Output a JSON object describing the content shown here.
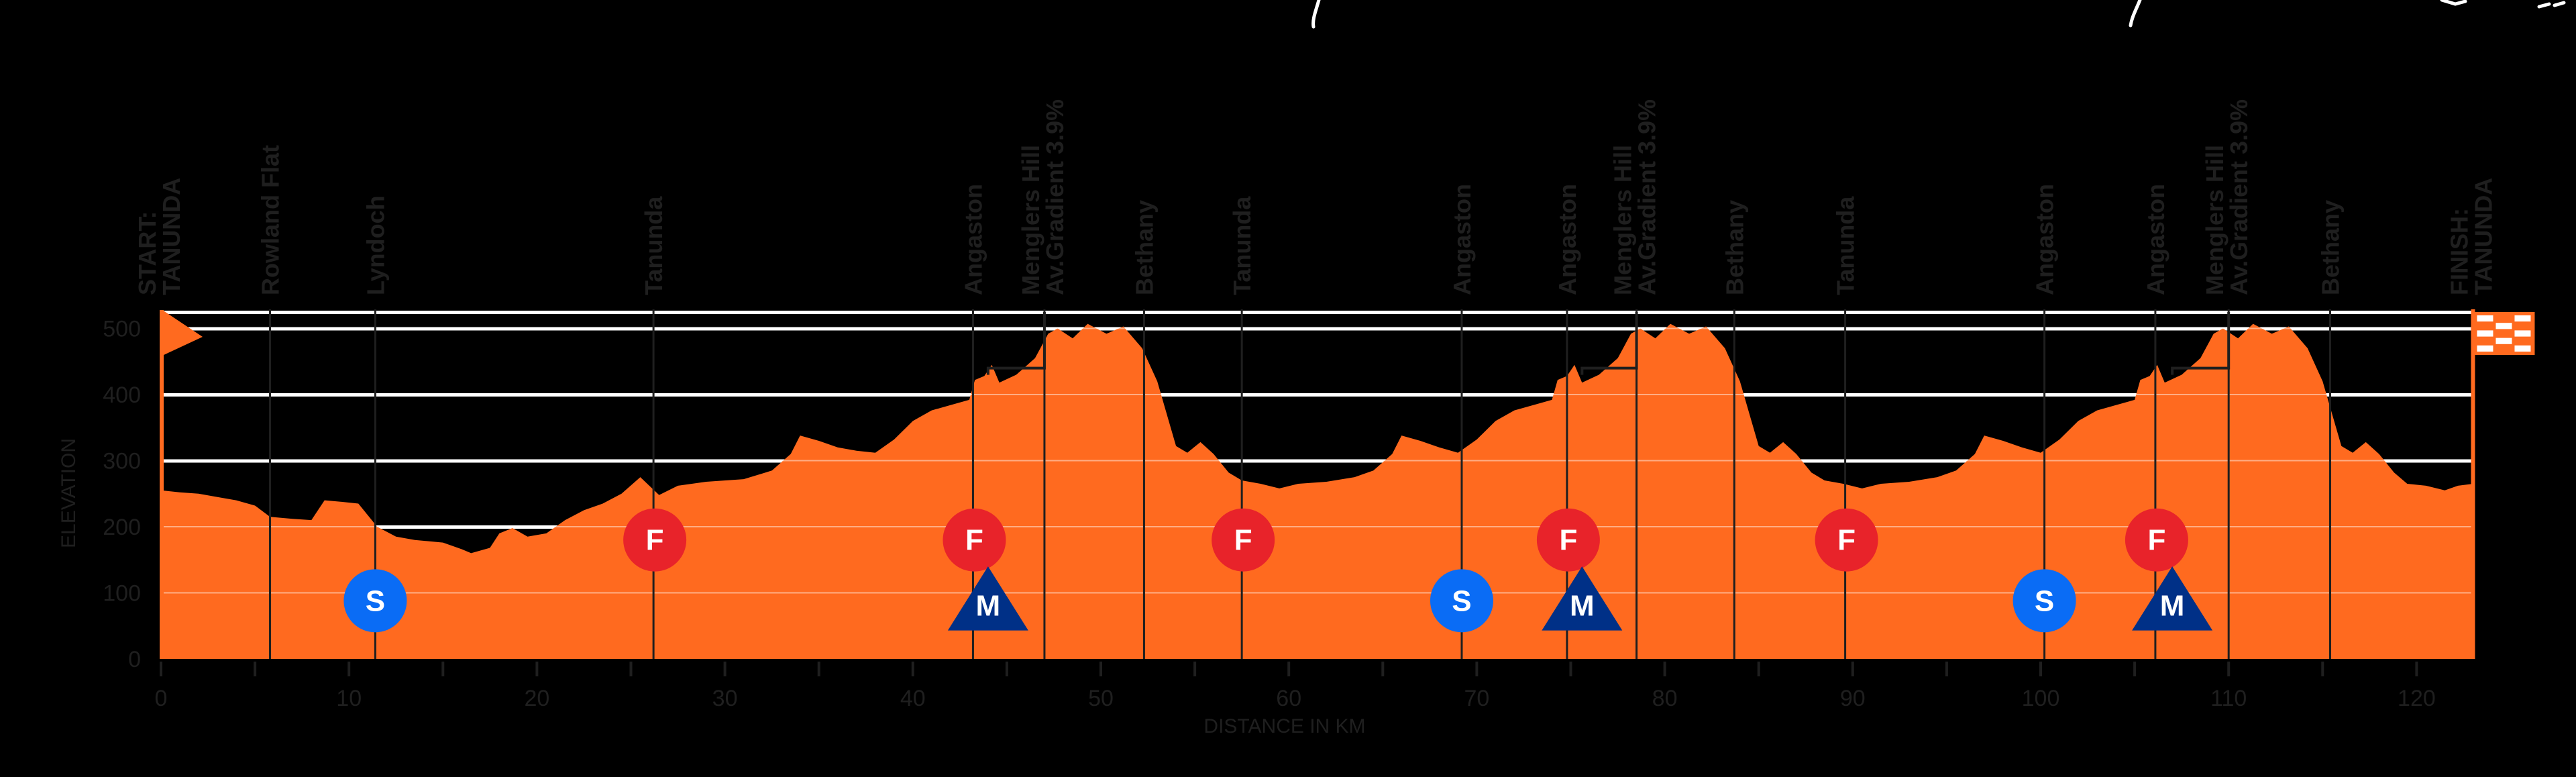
{
  "chart_data": {
    "type": "area",
    "title": "",
    "xlabel": "DISTANCE IN KM",
    "ylabel": "ELEVATION",
    "xlim": [
      0,
      123
    ],
    "ylim": [
      0,
      520
    ],
    "x_ticks": [
      0,
      10,
      20,
      30,
      40,
      50,
      60,
      70,
      80,
      90,
      100,
      110,
      120
    ],
    "y_ticks": [
      0,
      100,
      200,
      300,
      400,
      500
    ],
    "grid": true,
    "colors": {
      "fill": "#FF6A1F",
      "background": "#000000",
      "text": "#1F1F1F",
      "gridline": "#FFFFFF",
      "sprint": "#0A6CF5",
      "feed": "#E8232A",
      "mountain": "#003087"
    },
    "profile": [
      [
        0,
        255
      ],
      [
        1,
        252
      ],
      [
        2,
        250
      ],
      [
        3,
        245
      ],
      [
        4,
        240
      ],
      [
        5,
        232
      ],
      [
        5.8,
        215
      ],
      [
        7,
        212
      ],
      [
        8,
        210
      ],
      [
        8.7,
        240
      ],
      [
        9.5,
        238
      ],
      [
        10.5,
        235
      ],
      [
        11.5,
        200
      ],
      [
        12.5,
        185
      ],
      [
        13.5,
        180
      ],
      [
        15,
        176
      ],
      [
        16,
        166
      ],
      [
        16.5,
        160
      ],
      [
        17.5,
        168
      ],
      [
        18,
        190
      ],
      [
        18.7,
        198
      ],
      [
        19.5,
        185
      ],
      [
        20.5,
        190
      ],
      [
        21.5,
        210
      ],
      [
        22.5,
        225
      ],
      [
        23.5,
        235
      ],
      [
        24.5,
        250
      ],
      [
        25.5,
        275
      ],
      [
        26.5,
        248
      ],
      [
        27.5,
        262
      ],
      [
        29,
        268
      ],
      [
        31,
        272
      ],
      [
        32.5,
        285
      ],
      [
        33.5,
        310
      ],
      [
        34,
        338
      ],
      [
        35,
        330
      ],
      [
        36,
        320
      ],
      [
        37,
        315
      ],
      [
        38,
        312
      ],
      [
        39,
        332
      ],
      [
        40,
        360
      ],
      [
        41,
        376
      ],
      [
        42,
        384
      ],
      [
        43,
        392
      ],
      [
        43.3,
        422
      ],
      [
        43.8,
        428
      ],
      [
        44.2,
        445
      ],
      [
        44.6,
        418
      ],
      [
        45.5,
        430
      ],
      [
        46.5,
        455
      ],
      [
        47.2,
        492
      ],
      [
        47.7,
        500
      ],
      [
        48.5,
        485
      ],
      [
        49.3,
        507
      ],
      [
        50.3,
        492
      ],
      [
        51.2,
        503
      ],
      [
        52.2,
        470
      ],
      [
        53,
        420
      ],
      [
        54,
        322
      ],
      [
        54.6,
        312
      ],
      [
        55.3,
        328
      ],
      [
        56,
        310
      ],
      [
        56.8,
        282
      ],
      [
        57.5,
        270
      ],
      [
        58.5,
        265
      ],
      [
        59.5,
        258
      ],
      [
        60.5,
        265
      ],
      [
        62,
        268
      ],
      [
        63.5,
        275
      ],
      [
        64.5,
        285
      ],
      [
        65.5,
        310
      ],
      [
        66,
        338
      ],
      [
        67,
        330
      ],
      [
        68,
        320
      ],
      [
        69,
        312
      ],
      [
        70,
        332
      ],
      [
        71,
        360
      ],
      [
        72,
        376
      ],
      [
        73,
        384
      ],
      [
        74,
        392
      ],
      [
        74.3,
        422
      ],
      [
        74.8,
        428
      ],
      [
        75.2,
        445
      ],
      [
        75.6,
        418
      ],
      [
        76.5,
        430
      ],
      [
        77.5,
        455
      ],
      [
        78.2,
        492
      ],
      [
        78.7,
        500
      ],
      [
        79.5,
        485
      ],
      [
        80.3,
        507
      ],
      [
        81.3,
        492
      ],
      [
        82.2,
        503
      ],
      [
        83.2,
        470
      ],
      [
        84,
        420
      ],
      [
        85,
        322
      ],
      [
        85.6,
        312
      ],
      [
        86.3,
        328
      ],
      [
        87,
        310
      ],
      [
        87.8,
        282
      ],
      [
        88.5,
        270
      ],
      [
        89.5,
        265
      ],
      [
        90.5,
        258
      ],
      [
        91.5,
        265
      ],
      [
        93,
        268
      ],
      [
        94.5,
        275
      ],
      [
        95.5,
        285
      ],
      [
        96.5,
        310
      ],
      [
        97,
        338
      ],
      [
        98,
        330
      ],
      [
        99,
        320
      ],
      [
        100,
        312
      ],
      [
        101,
        332
      ],
      [
        102,
        360
      ],
      [
        103,
        376
      ],
      [
        104,
        384
      ],
      [
        105,
        392
      ],
      [
        105.3,
        422
      ],
      [
        105.8,
        428
      ],
      [
        106.2,
        445
      ],
      [
        106.6,
        418
      ],
      [
        107.5,
        430
      ],
      [
        108.5,
        455
      ],
      [
        109.2,
        492
      ],
      [
        109.7,
        500
      ],
      [
        110.5,
        485
      ],
      [
        111.3,
        507
      ],
      [
        112.3,
        492
      ],
      [
        113.2,
        503
      ],
      [
        114.2,
        470
      ],
      [
        115,
        420
      ],
      [
        116,
        322
      ],
      [
        116.6,
        312
      ],
      [
        117.3,
        328
      ],
      [
        118,
        310
      ],
      [
        118.8,
        282
      ],
      [
        119.5,
        265
      ],
      [
        120.5,
        262
      ],
      [
        121.5,
        255
      ],
      [
        122.2,
        262
      ],
      [
        123,
        265
      ]
    ],
    "waypoints": [
      {
        "km": 0,
        "name": "START:",
        "name2": "TANUNDA",
        "bold": true
      },
      {
        "km": 5.8,
        "name": "Rowland Flat"
      },
      {
        "km": 11.4,
        "name": "Lyndoch"
      },
      {
        "km": 26.2,
        "name": "Tanunda"
      },
      {
        "km": 43.2,
        "name": "Angaston"
      },
      {
        "km": 47,
        "name": "Menglers Hill",
        "name2": "Av.Gradient 3.9%"
      },
      {
        "km": 52.3,
        "name": "Bethany"
      },
      {
        "km": 57.5,
        "name": "Tanunda"
      },
      {
        "km": 69.2,
        "name": "Angaston"
      },
      {
        "km": 74.8,
        "name": "Angaston"
      },
      {
        "km": 78.5,
        "name": "Menglers Hill",
        "name2": "Av.Gradient 3.9%"
      },
      {
        "km": 83.7,
        "name": "Bethany"
      },
      {
        "km": 89.6,
        "name": "Tanunda"
      },
      {
        "km": 100.2,
        "name": "Angaston"
      },
      {
        "km": 106.1,
        "name": "Angaston"
      },
      {
        "km": 110,
        "name": "Menglers Hill",
        "name2": "Av.Gradient 3.9%"
      },
      {
        "km": 115.4,
        "name": "Bethany"
      },
      {
        "km": 123,
        "name": "FINISH:",
        "name2": "TANUNDA",
        "bold": true
      }
    ],
    "markers": [
      {
        "type": "sprint",
        "label": "S",
        "km": 11.4
      },
      {
        "type": "feed",
        "label": "F",
        "km": 26.2
      },
      {
        "type": "feed",
        "label": "F",
        "km": 43.2
      },
      {
        "type": "mountain",
        "label": "M",
        "km": 44.0
      },
      {
        "type": "feed",
        "label": "F",
        "km": 57.5
      },
      {
        "type": "sprint",
        "label": "S",
        "km": 69.2
      },
      {
        "type": "feed",
        "label": "F",
        "km": 74.8
      },
      {
        "type": "mountain",
        "label": "M",
        "km": 75.6
      },
      {
        "type": "feed",
        "label": "F",
        "km": 89.6
      },
      {
        "type": "sprint",
        "label": "S",
        "km": 100.2
      },
      {
        "type": "feed",
        "label": "F",
        "km": 106.1
      },
      {
        "type": "mountain",
        "label": "M",
        "km": 107.0
      }
    ],
    "climbs": [
      {
        "name": "Menglers Hill",
        "avg_gradient": "3.9%",
        "start_km": 44.0,
        "top_km": 47.0
      },
      {
        "name": "Menglers Hill",
        "avg_gradient": "3.9%",
        "start_km": 75.6,
        "top_km": 78.5
      },
      {
        "name": "Menglers Hill",
        "avg_gradient": "3.9%",
        "start_km": 107.0,
        "top_km": 110.0
      }
    ]
  },
  "labels": {
    "x_axis_title": "DISTANCE IN KM",
    "y_axis_title": "ELEVATION"
  }
}
